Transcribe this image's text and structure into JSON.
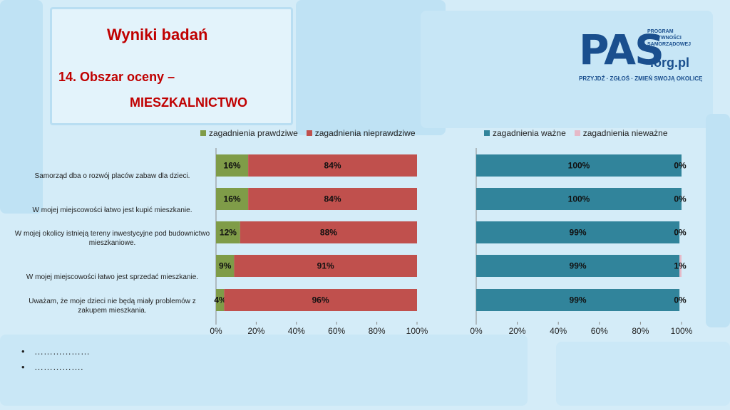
{
  "slide": {
    "title": "Wyniki badań",
    "subtitle_line1": "14. Obszar oceny –",
    "subtitle_line2": "MIESZKALNICTWO"
  },
  "logo": {
    "main": "PAS",
    "side_line1": "PROGRAM",
    "side_line2": "AKTYWNOŚCI",
    "side_line3": "SAMORZĄDOWEJ",
    "domain": ".org.pl",
    "tagline": "PRZYJDŹ · ZGŁOŚ · ZMIEŃ SWOJĄ OKOLICĘ"
  },
  "bullets": [
    "………………",
    "……………."
  ],
  "colors": {
    "green": "#7f9c48",
    "red": "#c0504d",
    "teal": "#31849b",
    "pink": "#e6b9c8"
  },
  "chart_data": [
    {
      "type": "bar",
      "orientation": "horizontal",
      "stacked": "percent",
      "categories": [
        "Samorząd dba o rozwój placów zabaw dla dzieci.",
        "W mojej miejscowości łatwo jest kupić mieszkanie.",
        "W mojej okolicy istnieją tereny inwestycyjne pod budownictwo mieszkaniowe.",
        "W mojej miejscowości łatwo jest sprzedać mieszkanie.",
        "Uważam, że moje dzieci nie będą miały problemów z zakupem mieszkania."
      ],
      "series": [
        {
          "name": "zagadnienia prawdziwe",
          "values": [
            16,
            16,
            12,
            9,
            4
          ],
          "labels": [
            "16%",
            "16%",
            "12%",
            "9%",
            "4%"
          ]
        },
        {
          "name": "zagadnienia nieprawdziwe",
          "values": [
            84,
            84,
            88,
            91,
            96
          ],
          "labels": [
            "84%",
            "84%",
            "88%",
            "91%",
            "96%"
          ]
        }
      ],
      "xticks": [
        "0%",
        "20%",
        "40%",
        "60%",
        "80%",
        "100%"
      ],
      "xlim": [
        0,
        100
      ],
      "legend": "top"
    },
    {
      "type": "bar",
      "orientation": "horizontal",
      "stacked": "percent",
      "categories": [
        "Samorząd dba o rozwój placów zabaw dla dzieci.",
        "W mojej miejscowości łatwo jest kupić mieszkanie.",
        "W mojej okolicy istnieją tereny inwestycyjne pod budownictwo mieszkaniowe.",
        "W mojej miejscowości łatwo jest sprzedać mieszkanie.",
        "Uważam, że moje dzieci nie będą miały problemów z zakupem mieszkania."
      ],
      "series": [
        {
          "name": "zagadnienia ważne",
          "values": [
            100,
            100,
            99,
            99,
            99
          ],
          "labels": [
            "100%",
            "100%",
            "99%",
            "99%",
            "99%"
          ]
        },
        {
          "name": "zagadnienia nieważne",
          "values": [
            0,
            0,
            0,
            1,
            0
          ],
          "labels": [
            "0%",
            "0%",
            "0%",
            "1%",
            "0%"
          ]
        }
      ],
      "xticks": [
        "0%",
        "20%",
        "40%",
        "60%",
        "80%",
        "100%"
      ],
      "xlim": [
        0,
        100
      ],
      "legend": "top"
    }
  ]
}
